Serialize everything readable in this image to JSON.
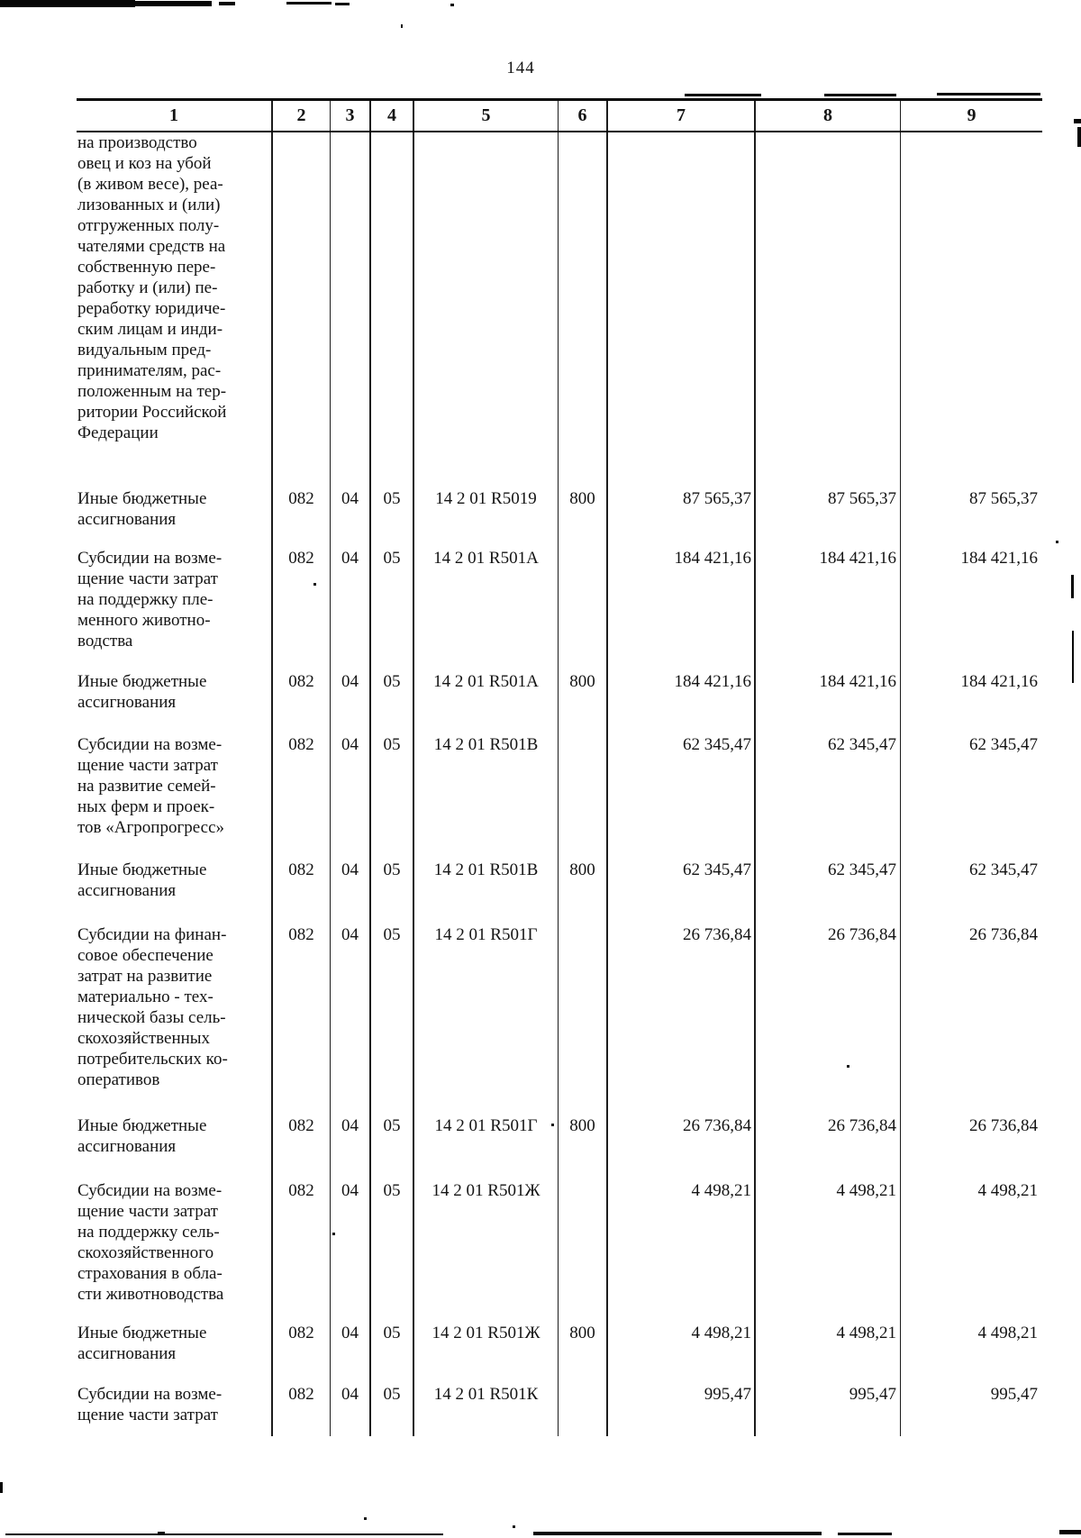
{
  "page": {
    "number": "144"
  },
  "table": {
    "headers": [
      "1",
      "2",
      "3",
      "4",
      "5",
      "6",
      "7",
      "8",
      "9"
    ],
    "rows": [
      {
        "label_lines": [
          "на производство",
          "овец и коз на убой",
          "(в живом весе), реа-",
          "лизованных и (или)",
          "отгруженных полу-",
          "чателями средств на",
          "собственную пере-",
          "работку и (или) пе-",
          "реработку юридиче-",
          "ским лицам и инди-",
          "видуальным пред-",
          "принимателям, рас-",
          "положенным на тер-",
          "ритории Российской",
          "Федерации"
        ],
        "cells": [
          "",
          "",
          "",
          "",
          "",
          "",
          "",
          ""
        ]
      },
      {
        "label_lines": [
          "Иные бюджетные",
          "ассигнования"
        ],
        "cells": [
          "082",
          "04",
          "05",
          "14 2 01 R5019",
          "800",
          "87 565,37",
          "87 565,37",
          "87 565,37"
        ]
      },
      {
        "label_lines": [
          "Субсидии на возме-",
          "щение части затрат",
          "на поддержку пле-",
          "менного животно-",
          "водства"
        ],
        "cells": [
          "082",
          "04",
          "05",
          "14 2 01 R501A",
          "",
          "184 421,16",
          "184 421,16",
          "184 421,16"
        ]
      },
      {
        "label_lines": [
          "Иные бюджетные",
          "ассигнования"
        ],
        "cells": [
          "082",
          "04",
          "05",
          "14 2 01 R501A",
          "800",
          "184 421,16",
          "184 421,16",
          "184 421,16"
        ]
      },
      {
        "label_lines": [
          "Субсидии на возме-",
          "щение части затрат",
          "на развитие семей-",
          "ных ферм и проек-",
          "тов «Агропрогресс»"
        ],
        "cells": [
          "082",
          "04",
          "05",
          "14 2 01 R501B",
          "",
          "62 345,47",
          "62 345,47",
          "62 345,47"
        ]
      },
      {
        "label_lines": [
          "Иные бюджетные",
          "ассигнования"
        ],
        "cells": [
          "082",
          "04",
          "05",
          "14 2 01 R501B",
          "800",
          "62 345,47",
          "62 345,47",
          "62 345,47"
        ]
      },
      {
        "label_lines": [
          "Субсидии на финан-",
          "совое обеспечение",
          "затрат на развитие",
          "материально - тех-",
          "нической базы сель-",
          "скохозяйственных",
          "потребительских ко-",
          "оперативов"
        ],
        "cells": [
          "082",
          "04",
          "05",
          "14 2 01 R501Г",
          "",
          "26 736,84",
          "26 736,84",
          "26 736,84"
        ]
      },
      {
        "label_lines": [
          "Иные бюджетные",
          "ассигнования"
        ],
        "cells": [
          "082",
          "04",
          "05",
          "14 2 01 R501Г",
          "800",
          "26 736,84",
          "26 736,84",
          "26 736,84"
        ]
      },
      {
        "label_lines": [
          "Субсидии на возме-",
          "щение части затрат",
          "на поддержку сель-",
          "скохозяйственного",
          "страхования в обла-",
          "сти животноводства"
        ],
        "cells": [
          "082",
          "04",
          "05",
          "14 2 01 R501Ж",
          "",
          "4 498,21",
          "4 498,21",
          "4 498,21"
        ]
      },
      {
        "label_lines": [
          "Иные бюджетные",
          "ассигнования"
        ],
        "cells": [
          "082",
          "04",
          "05",
          "14 2 01 R501Ж",
          "800",
          "4 498,21",
          "4 498,21",
          "4 498,21"
        ]
      },
      {
        "label_lines": [
          "Субсидии на возме-",
          "щение части затрат"
        ],
        "cells": [
          "082",
          "04",
          "05",
          "14 2 01 R501К",
          "",
          "995,47",
          "995,47",
          "995,47"
        ]
      }
    ]
  }
}
